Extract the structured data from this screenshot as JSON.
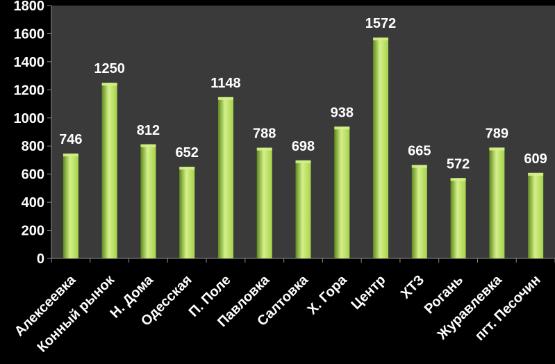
{
  "chart_data": {
    "type": "bar",
    "title": "",
    "xlabel": "",
    "ylabel": "",
    "ylim": [
      0,
      1800
    ],
    "y_ticks": [
      0,
      200,
      400,
      600,
      800,
      1000,
      1200,
      1400,
      1600,
      1800
    ],
    "grid": false,
    "legend": "none",
    "categories": [
      "Алексеевка",
      "Конный рынок",
      "Н. Дома",
      "Одесская",
      "П. Поле",
      "Павловка",
      "Салтовка",
      "Х. Гора",
      "Центр",
      "ХТЗ",
      "Рогань",
      "Журавлевка",
      "пгт. Песочин"
    ],
    "values": [
      746,
      1250,
      812,
      652,
      1148,
      788,
      698,
      938,
      1572,
      665,
      572,
      789,
      609
    ],
    "colors": {
      "plot_background": "#3a3a3a",
      "page_background": "#000000",
      "bar_light": "#d4f08a",
      "bar_mid": "#a6d24a",
      "bar_dark": "#5f8a1c",
      "axis": "#8c8c8c",
      "text": "#ffffff"
    }
  }
}
